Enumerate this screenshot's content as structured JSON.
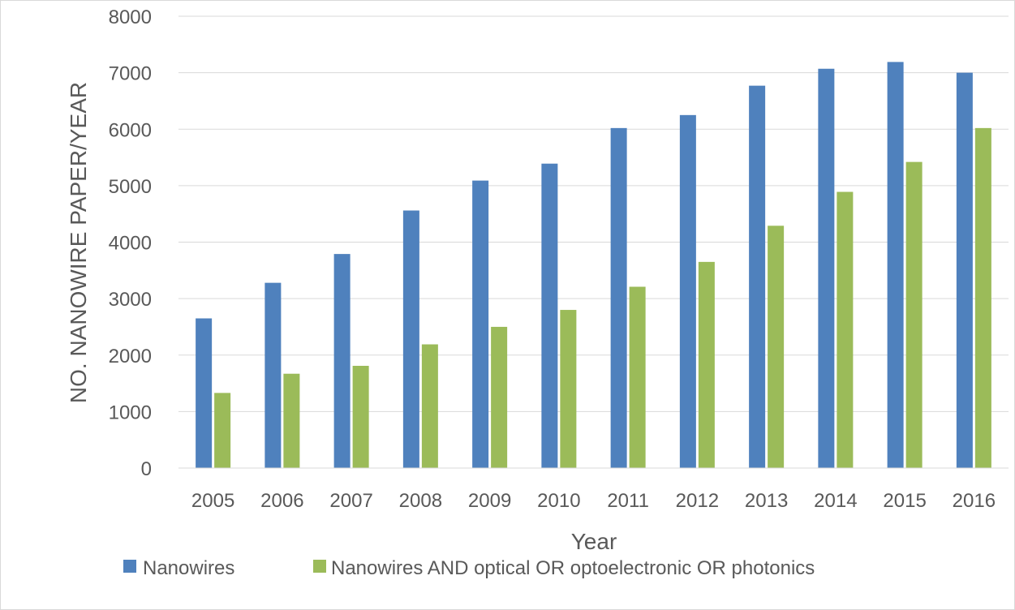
{
  "chart_data": {
    "type": "bar",
    "title": "",
    "xlabel": "Year",
    "ylabel": "NO. NANOWIRE PAPER/YEAR",
    "ylim": [
      0,
      8000
    ],
    "yticks": [
      0,
      1000,
      2000,
      3000,
      4000,
      5000,
      6000,
      7000,
      8000
    ],
    "grid": true,
    "legend_position": "bottom",
    "categories": [
      "2005",
      "2006",
      "2007",
      "2008",
      "2009",
      "2010",
      "2011",
      "2012",
      "2013",
      "2014",
      "2015",
      "2016"
    ],
    "series": [
      {
        "name": "Nanowires",
        "color": "#4f81bd",
        "values": [
          2650,
          3280,
          3790,
          4560,
          5090,
          5390,
          6020,
          6250,
          6770,
          7070,
          7190,
          7000
        ]
      },
      {
        "name": "Nanowires AND optical OR optoelectronic OR photonics",
        "color": "#9bbb59",
        "values": [
          1330,
          1670,
          1810,
          2190,
          2500,
          2800,
          3210,
          3650,
          4290,
          4890,
          5420,
          6020
        ]
      }
    ]
  }
}
